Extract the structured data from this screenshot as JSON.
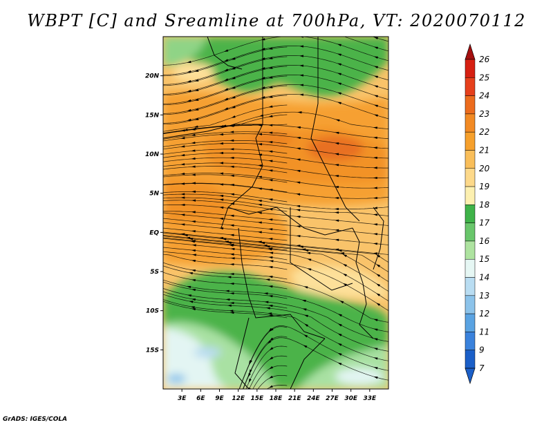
{
  "title": "WBPT [C] and Sreamline at 700hPa, VT: 2020070112",
  "credit": "GrADS: IGES/COLA",
  "map": {
    "lon_range": [
      0,
      36
    ],
    "lat_range": [
      -20,
      25
    ],
    "y_ticks": [
      "20N",
      "15N",
      "10N",
      "5N",
      "EQ",
      "5S",
      "10S",
      "15S"
    ],
    "x_ticks": [
      "3E",
      "6E",
      "9E",
      "12E",
      "15E",
      "18E",
      "21E",
      "24E",
      "27E",
      "30E",
      "33E"
    ]
  },
  "colorbar": {
    "labels": [
      "26",
      "25",
      "24",
      "23",
      "22",
      "21",
      "20",
      "19",
      "18",
      "17",
      "16",
      "15",
      "14",
      "13",
      "12",
      "11",
      "9",
      "7"
    ],
    "colors": [
      "#a50f0f",
      "#d62012",
      "#e6401c",
      "#ec6c1e",
      "#f28a24",
      "#f6a02c",
      "#f9be5a",
      "#fdd98a",
      "#fdf0b0",
      "#3fb349",
      "#69c66b",
      "#aee3a0",
      "#e6f7f4",
      "#b9ddf2",
      "#8cc3ea",
      "#5aa3e2",
      "#3a82dc",
      "#1b5fc8"
    ]
  }
}
